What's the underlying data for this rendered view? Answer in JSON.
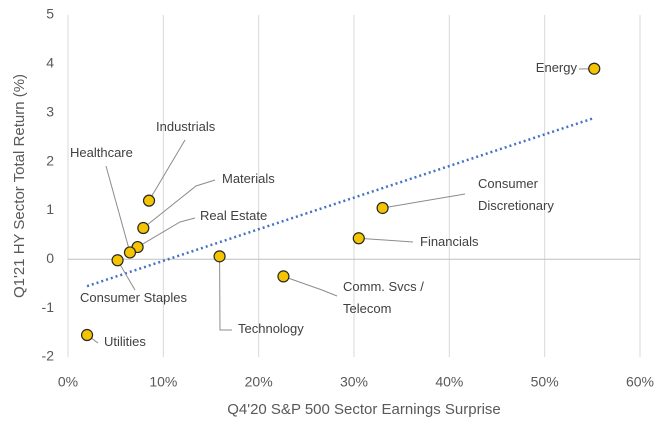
{
  "chart_data": {
    "type": "scatter",
    "x_label": "Q4'20 S&P 500 Sector Earnings Surprise",
    "y_label": "Q1'21 HY Sector Total Return (%)",
    "xlim": [
      0,
      60
    ],
    "xticks": [
      {
        "value": 0,
        "label": "0%"
      },
      {
        "value": 10,
        "label": "10%"
      },
      {
        "value": 20,
        "label": "20%"
      },
      {
        "value": 30,
        "label": "30%"
      },
      {
        "value": 40,
        "label": "40%"
      },
      {
        "value": 50,
        "label": "50%"
      },
      {
        "value": 60,
        "label": "60%"
      }
    ],
    "ylim": [
      -2,
      5
    ],
    "yticks": [
      -2,
      -1,
      0,
      1,
      2,
      3,
      4,
      5
    ],
    "grid": true,
    "color": "#f5c400",
    "trend_color": "#4472c4",
    "point_labels": [
      [
        "Energy"
      ],
      [
        "Consumer",
        "Discretionary"
      ],
      [
        "Financials"
      ],
      [
        "Comm. Svcs /",
        "Telecom"
      ],
      [
        "Technology"
      ],
      [
        "Industrials"
      ],
      [
        "Materials"
      ],
      [
        "Real Estate"
      ],
      [
        "Healthcare"
      ],
      [
        "Consumer Staples"
      ],
      [
        "Utilities"
      ]
    ],
    "x": [
      55.2,
      33.0,
      30.5,
      22.6,
      15.9,
      8.5,
      7.9,
      7.3,
      6.5,
      5.2,
      2.0
    ],
    "values": [
      3.9,
      1.05,
      0.43,
      -0.35,
      0.06,
      1.2,
      0.64,
      0.25,
      0.14,
      -0.02,
      -1.55
    ],
    "trendline": {
      "x": [
        2,
        55
      ],
      "y": [
        -0.55,
        2.88
      ]
    }
  }
}
